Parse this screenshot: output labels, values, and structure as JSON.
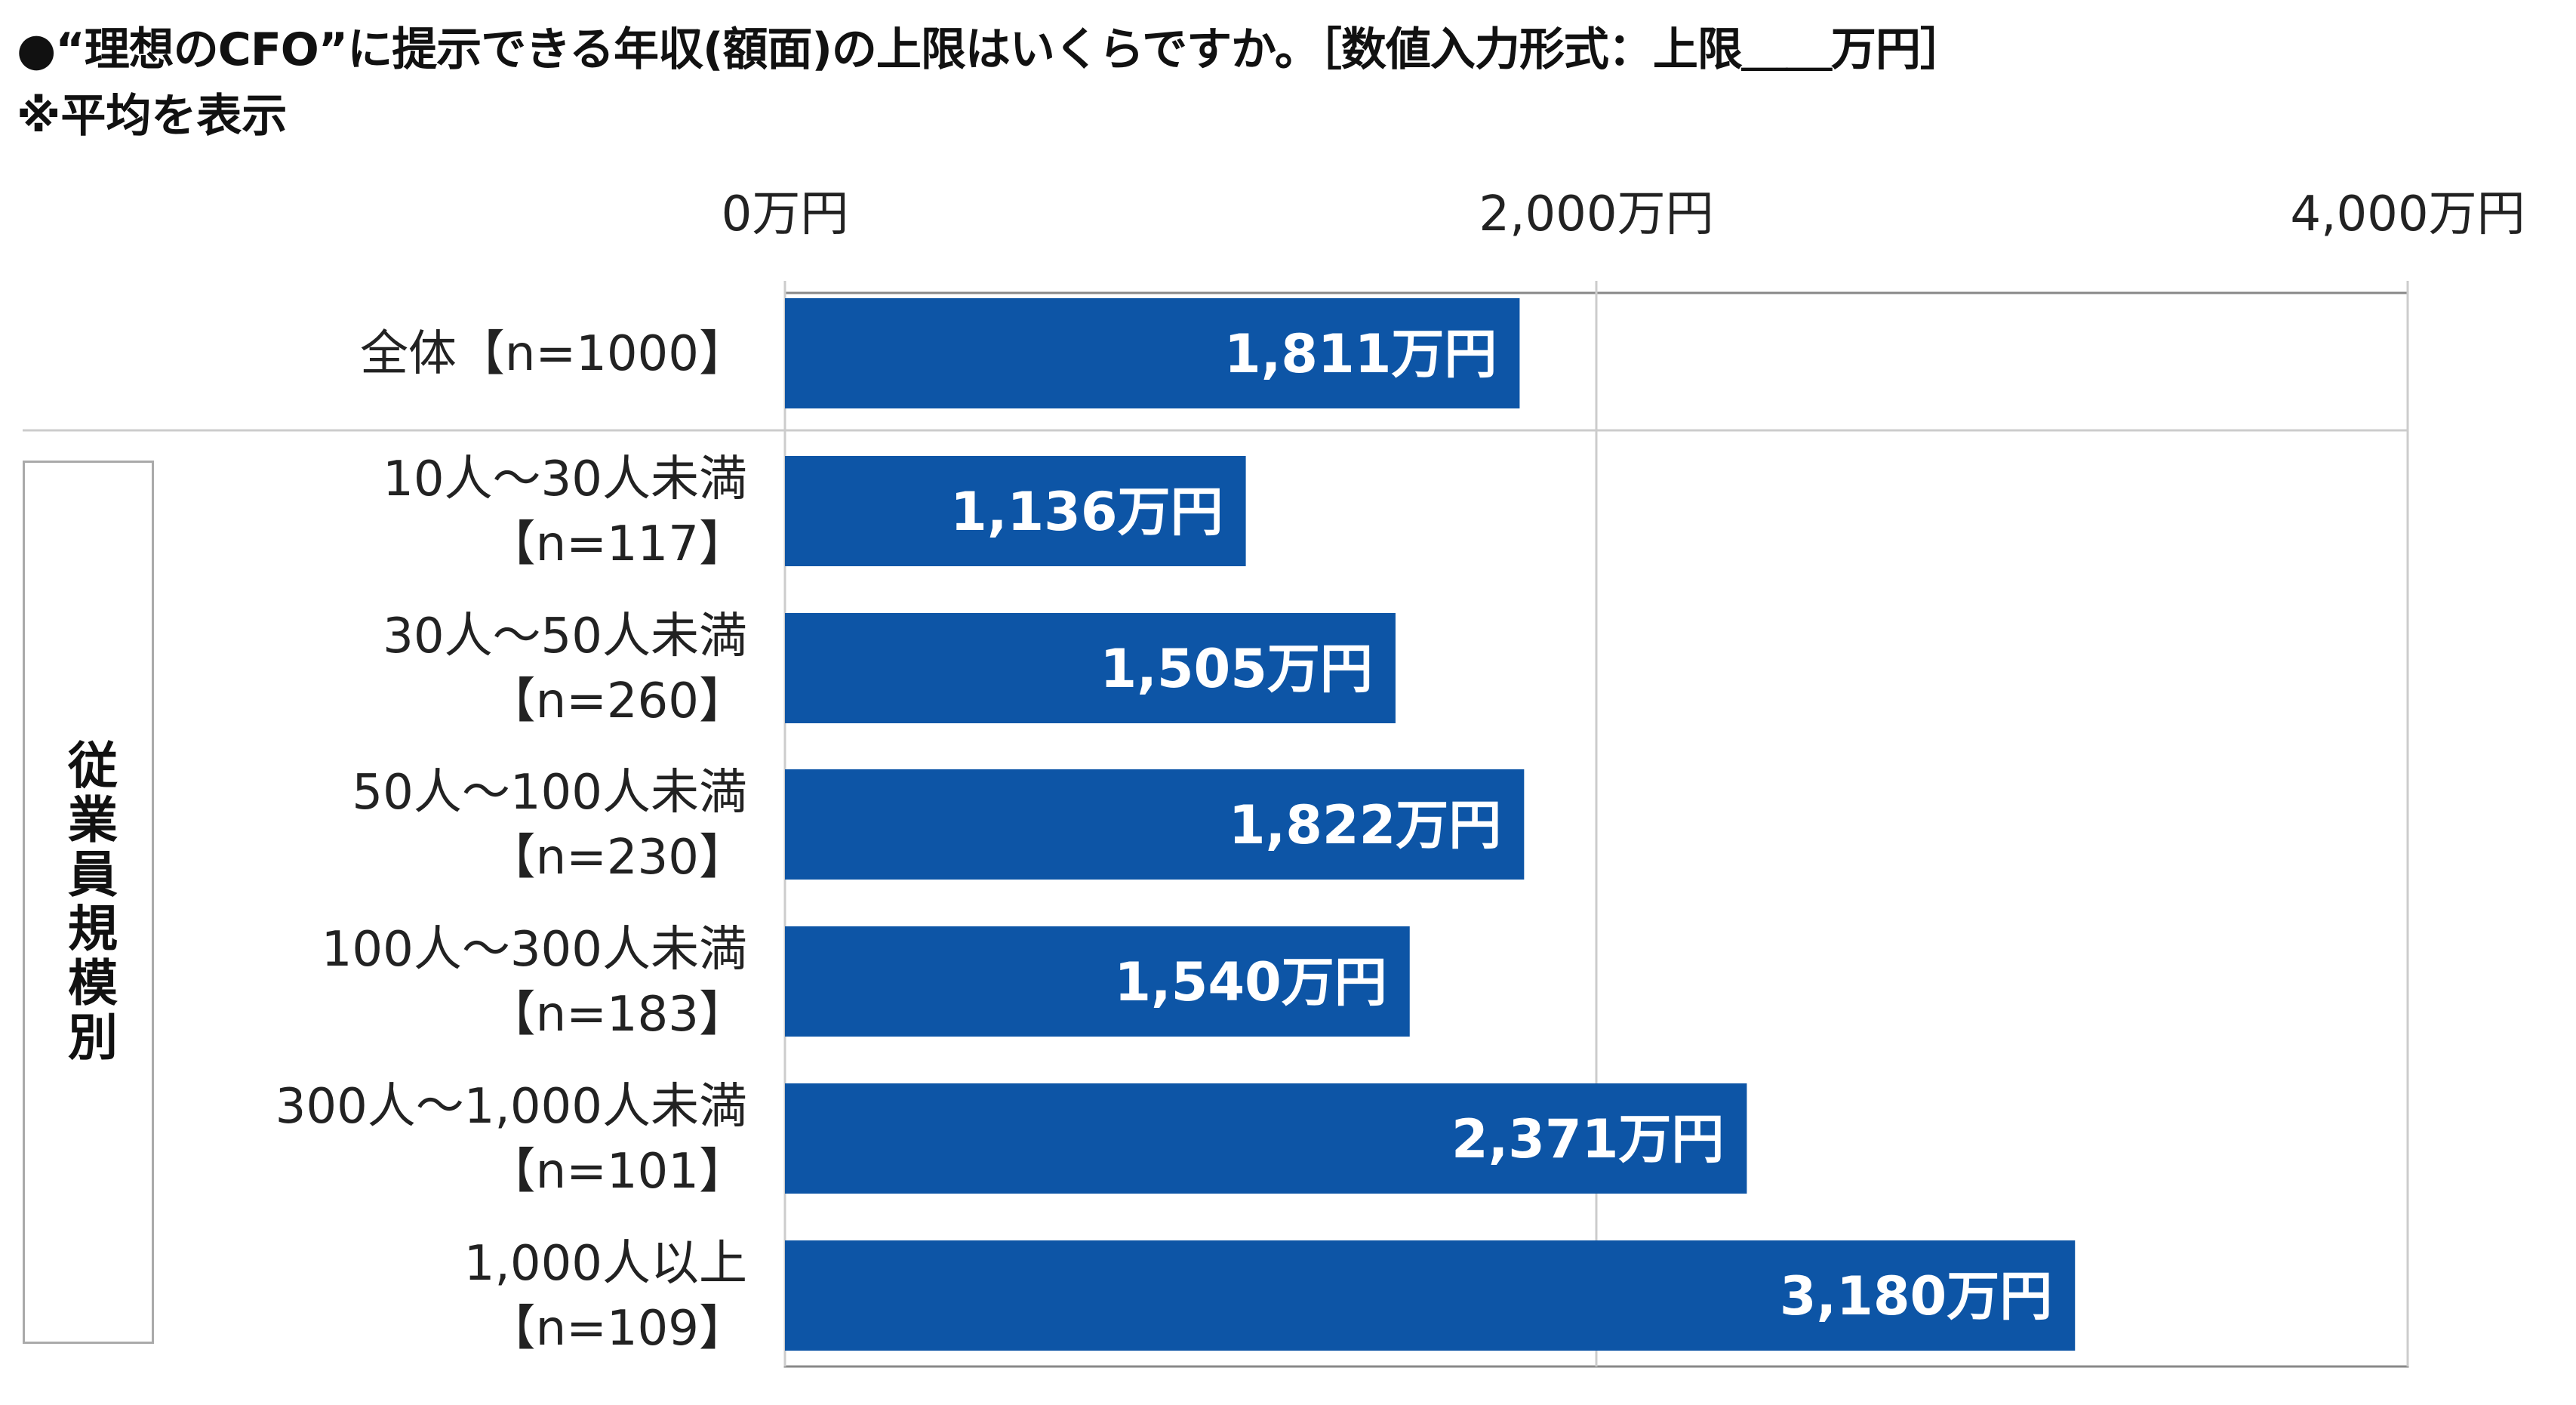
{
  "header": {
    "title": "●“理想のCFO”に提示できる年収(額面)の上限はいくらですか。［数値入力形式：上限＿＿万円］",
    "subtitle": "※平均を表示"
  },
  "group_label": "従業員規模別",
  "colors": {
    "bar": "#0d55a6",
    "grid": "#cccccc",
    "axis": "#888888"
  },
  "chart_data": {
    "type": "bar",
    "orientation": "horizontal",
    "unit": "万円",
    "xlim": [
      0,
      4000
    ],
    "ticks": [
      0,
      2000,
      4000
    ],
    "tick_labels": [
      "0万円",
      "2,000万円",
      "4,000万円"
    ],
    "categories": [
      [
        "全体【n=1000】"
      ],
      [
        "10人～30人未満",
        "【n=117】"
      ],
      [
        "30人～50人未満",
        "【n=260】"
      ],
      [
        "50人～100人未満",
        "【n=230】"
      ],
      [
        "100人～300人未満",
        "【n=183】"
      ],
      [
        "300人～1,000人未満",
        "【n=101】"
      ],
      [
        "1,000人以上",
        "【n=109】"
      ]
    ],
    "values": [
      1811,
      1136,
      1505,
      1822,
      1540,
      2371,
      3180
    ],
    "value_labels": [
      "1,811万円",
      "1,136万円",
      "1,505万円",
      "1,822万円",
      "1,540万円",
      "2,371万円",
      "3,180万円"
    ]
  }
}
